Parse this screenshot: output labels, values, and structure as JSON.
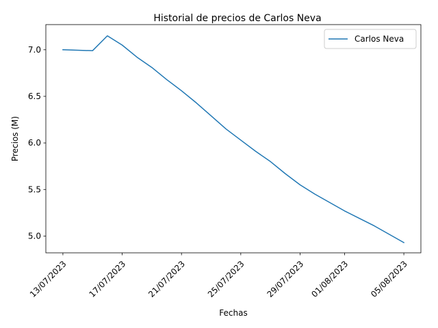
{
  "chart_data": {
    "type": "line",
    "title": "Historial de precios de Carlos Neva",
    "xlabel": "Fechas",
    "ylabel": "Precios (M)",
    "ylim": [
      4.82,
      7.27
    ],
    "y_ticks": [
      5.0,
      5.5,
      6.0,
      6.5,
      7.0
    ],
    "y_tick_labels": [
      "5.0",
      "5.5",
      "6.0",
      "6.5",
      "7.0"
    ],
    "x_ticks": [
      "2023-07-13",
      "2023-07-17",
      "2023-07-21",
      "2023-07-25",
      "2023-07-29",
      "2023-08-01",
      "2023-08-05"
    ],
    "x_tick_labels": [
      "13/07/2023",
      "17/07/2023",
      "21/07/2023",
      "25/07/2023",
      "29/07/2023",
      "01/08/2023",
      "05/08/2023"
    ],
    "legend_position": "top-right",
    "grid": false,
    "series": [
      {
        "name": "Carlos Neva",
        "color": "#1f77b4",
        "x": [
          "2023-07-13",
          "2023-07-15",
          "2023-07-16",
          "2023-07-17",
          "2023-07-18",
          "2023-07-19",
          "2023-07-20",
          "2023-07-21",
          "2023-07-22",
          "2023-07-23",
          "2023-07-24",
          "2023-07-25",
          "2023-07-26",
          "2023-07-27",
          "2023-07-28",
          "2023-07-29",
          "2023-07-30",
          "2023-07-31",
          "2023-08-01",
          "2023-08-02",
          "2023-08-03",
          "2023-08-04",
          "2023-08-05"
        ],
        "values": [
          7.0,
          6.99,
          7.15,
          7.05,
          6.92,
          6.81,
          6.68,
          6.56,
          6.43,
          6.29,
          6.15,
          6.03,
          5.91,
          5.8,
          5.67,
          5.55,
          5.45,
          5.36,
          5.27,
          5.19,
          5.11,
          5.02,
          4.93
        ]
      }
    ]
  }
}
